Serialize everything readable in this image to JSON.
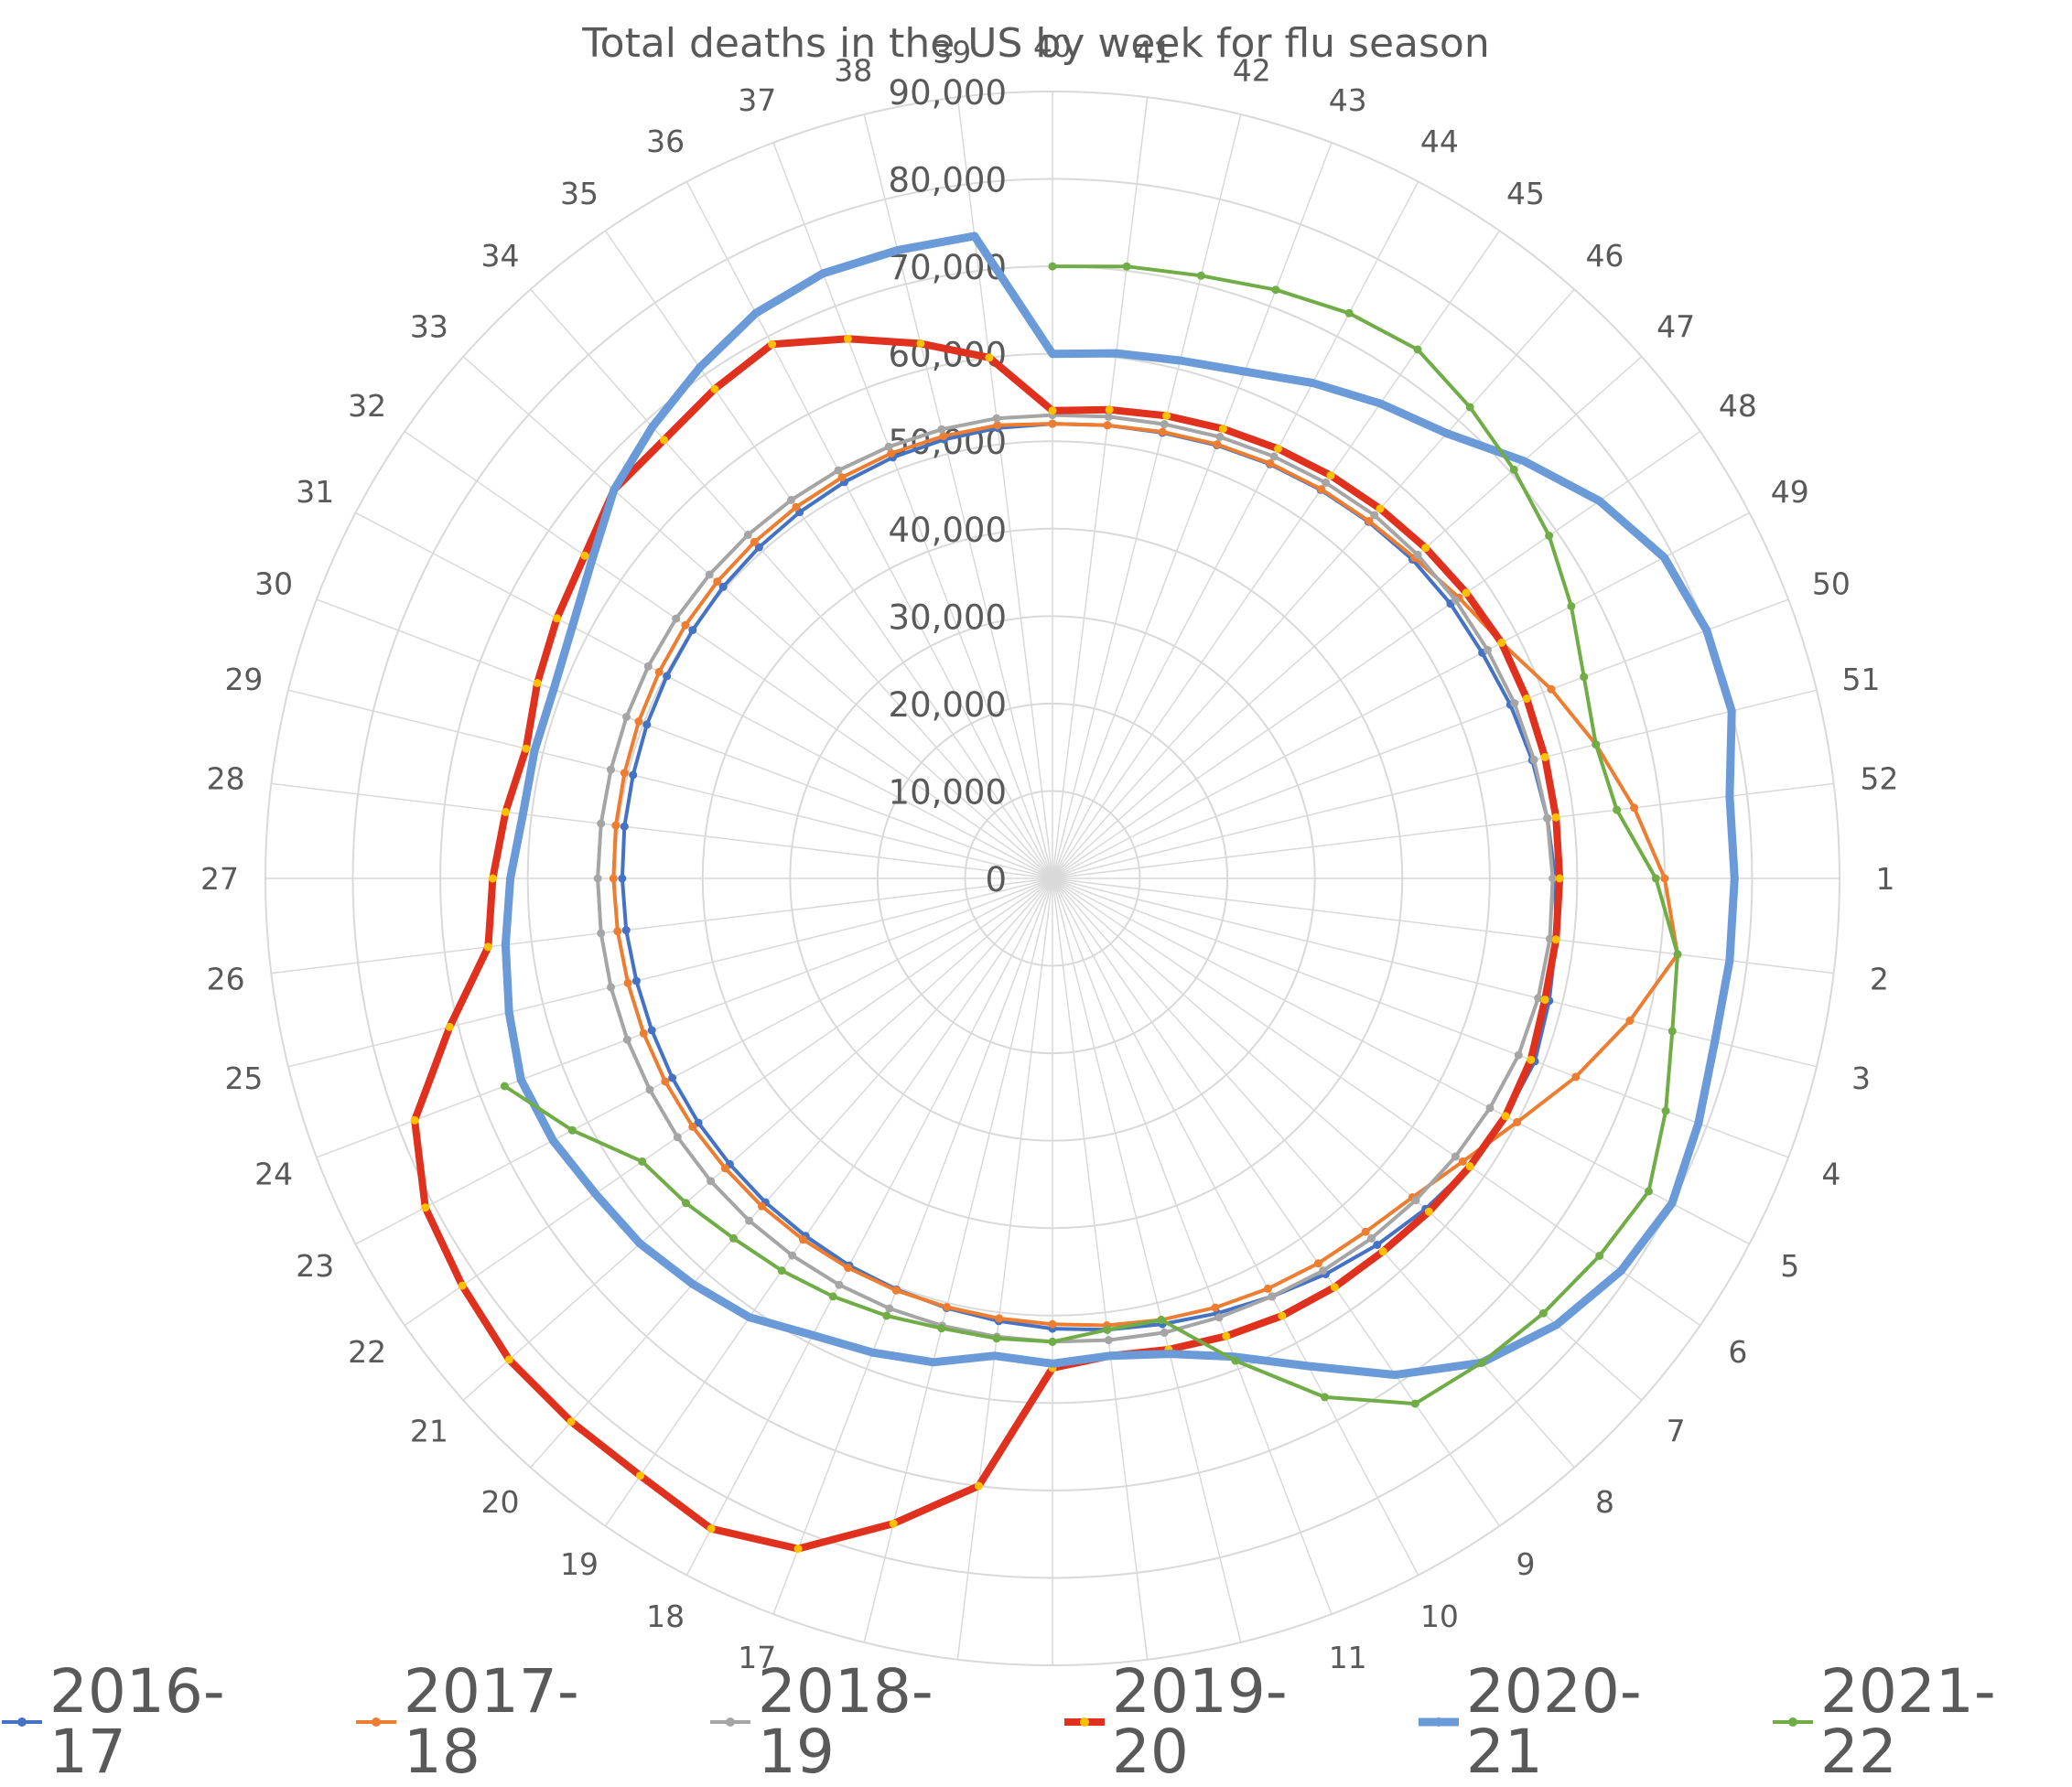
{
  "chart_data": {
    "type": "radar",
    "title": "Total deaths in the US by week for flu season",
    "categories": [
      "40",
      "41",
      "42",
      "43",
      "44",
      "45",
      "46",
      "47",
      "48",
      "49",
      "50",
      "51",
      "52",
      "1",
      "2",
      "3",
      "4",
      "5",
      "6",
      "7",
      "8",
      "9",
      "10",
      "11",
      "12",
      "13",
      "14",
      "15",
      "16",
      "17",
      "18",
      "19",
      "20",
      "21",
      "22",
      "23",
      "24",
      "25",
      "26",
      "27",
      "28",
      "29",
      "30",
      "31",
      "32",
      "33",
      "34",
      "35",
      "36",
      "37",
      "38",
      "39"
    ],
    "radial_ticks": [
      "0",
      "10,000",
      "20,000",
      "30,000",
      "40,000",
      "50,000",
      "60,000",
      "70,000",
      "80,000",
      "90,000"
    ],
    "rlim": [
      0,
      90000
    ],
    "grid": true,
    "legend_position": "bottom",
    "series": [
      {
        "name": "2016-17",
        "color": "#4472c4",
        "values": [
          52000,
          52200,
          52500,
          53000,
          53500,
          54000,
          54500,
          55000,
          55300,
          55500,
          56000,
          56500,
          57000,
          57500,
          58000,
          58500,
          59000,
          58500,
          58000,
          57000,
          56000,
          55000,
          54000,
          53200,
          52500,
          52000,
          51500,
          51000,
          50600,
          50300,
          50000,
          49700,
          49500,
          49300,
          49200,
          49100,
          49000,
          49000,
          49100,
          49200,
          49300,
          49400,
          49600,
          49800,
          50000,
          50300,
          50600,
          50900,
          51200,
          51500,
          51700,
          51900
        ]
      },
      {
        "name": "2017-18",
        "color": "#ed7d31",
        "values": [
          52000,
          52200,
          52600,
          53100,
          53600,
          54100,
          54600,
          55300,
          56500,
          58000,
          61000,
          64000,
          67000,
          70000,
          72000,
          68000,
          64000,
          60000,
          57000,
          55000,
          54000,
          53500,
          53000,
          52500,
          52000,
          51500,
          51000,
          50700,
          50500,
          50400,
          50300,
          50200,
          50100,
          50000,
          50000,
          50000,
          50000,
          50000,
          50100,
          50200,
          50300,
          50400,
          50600,
          50800,
          51000,
          51200,
          51400,
          51600,
          51800,
          52000,
          52100,
          52200
        ]
      },
      {
        "name": "2018-19",
        "color": "#a5a5a5",
        "values": [
          53000,
          53200,
          53500,
          54000,
          54500,
          55000,
          55500,
          55800,
          56000,
          56200,
          56500,
          56700,
          57000,
          57200,
          57300,
          57200,
          57000,
          56500,
          56000,
          55500,
          55000,
          54500,
          54000,
          53700,
          53500,
          53200,
          53000,
          52800,
          52700,
          52600,
          52500,
          52400,
          52300,
          52200,
          52100,
          52000,
          52000,
          52000,
          52000,
          52000,
          52000,
          52000,
          52100,
          52200,
          52300,
          52400,
          52500,
          52600,
          52700,
          52800,
          52900,
          53000
        ]
      },
      {
        "name": "2019-20",
        "color": "#e0301e",
        "values": [
          53500,
          54000,
          54500,
          55000,
          55500,
          56000,
          56500,
          57000,
          57500,
          58000,
          58000,
          58000,
          58000,
          58000,
          58000,
          58000,
          58500,
          58500,
          58000,
          57500,
          57000,
          56800,
          56500,
          56000,
          55500,
          55000,
          56000,
          70000,
          76000,
          82000,
          84000,
          83000,
          83000,
          83000,
          82000,
          81000,
          78000,
          71000,
          65000,
          64000,
          63000,
          62000,
          63000,
          64000,
          65000,
          67000,
          67000,
          68000,
          69000,
          66000,
          63000,
          60000
        ]
      },
      {
        "name": "2020-21",
        "color": "#6a9bd8",
        "values": [
          60000,
          60500,
          61000,
          62000,
          64000,
          66000,
          68000,
          72000,
          76000,
          79000,
          80000,
          80000,
          78000,
          78000,
          78000,
          78000,
          79000,
          80000,
          79000,
          77000,
          74000,
          69000,
          63000,
          58500,
          56000,
          55000,
          55500,
          55000,
          57000,
          58000,
          59000,
          61000,
          62000,
          63000,
          63500,
          64500,
          65000,
          64000,
          63000,
          62000,
          61000,
          61000,
          61000,
          62000,
          64000,
          67000,
          69000,
          71000,
          73000,
          74000,
          74000,
          74000
        ]
      },
      {
        "name": "2021-22",
        "color": "#70ad47",
        "values": [
          70000,
          70500,
          71000,
          72000,
          73000,
          73500,
          72000,
          70500,
          69000,
          67000,
          65000,
          64000,
          65000,
          69000,
          72000,
          73000,
          75000,
          77000,
          76000,
          75000,
          74000,
          73000,
          67000,
          59000,
          52000,
          52000,
          53000,
          53000,
          53000,
          53500,
          54000,
          54500,
          55000,
          56000,
          57000,
          62000,
          67000,
          null,
          null,
          null,
          null,
          null,
          null,
          null,
          null,
          null,
          null,
          null,
          null,
          null,
          null,
          null
        ]
      }
    ]
  },
  "colors": {
    "grid": "#d9d9d9",
    "text": "#595959"
  }
}
